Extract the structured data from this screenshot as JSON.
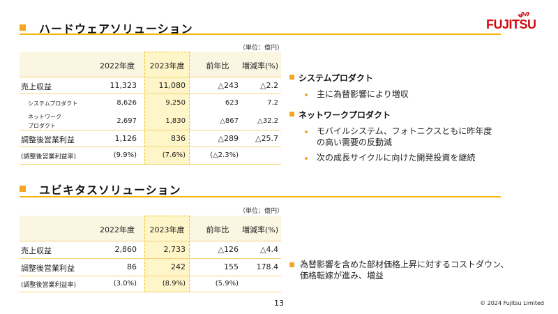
{
  "brand": {
    "logo_text": "FUJITSU",
    "logo_color": "#d20a11"
  },
  "accent_color": "#f5a623",
  "hardware": {
    "title": "ハードウェアソリューション",
    "unit": "（単位：億円）",
    "headers": [
      "2022年度",
      "2023年度",
      "前年比",
      "増減率(%)"
    ],
    "rows": [
      {
        "label": "売上収益",
        "values": [
          "11,323",
          "11,080",
          "△243",
          "△2.2"
        ]
      },
      {
        "label": "システムプロダクト",
        "values": [
          "8,626",
          "9,250",
          "623",
          "7.2"
        ]
      },
      {
        "label_lines": [
          "ネットワーク",
          "プロダクト"
        ],
        "values": [
          "2,697",
          "1,830",
          "△867",
          "△32.2"
        ]
      },
      {
        "label": "調整後営業利益",
        "values": [
          "1,126",
          "836",
          "△289",
          "△25.7"
        ]
      },
      {
        "label": "(調整後営業利益率)",
        "values": [
          "(9.9%)",
          "(7.6%)",
          "(△2.3%)",
          ""
        ]
      }
    ],
    "bullets": [
      {
        "heading": "システムプロダクト",
        "items": [
          [
            "主に為替影響により増収"
          ]
        ]
      },
      {
        "heading": "ネットワークプロダクト",
        "items": [
          [
            "モバイルシステム、フォトニクスともに昨年度",
            "の高い需要の反動減"
          ],
          [
            "次の成長サイクルに向けた開発投資を継続"
          ]
        ]
      }
    ]
  },
  "ubiquitous": {
    "title": "ユビキタスソリューション",
    "unit": "（単位：億円）",
    "headers": [
      "2022年度",
      "2023年度",
      "前年比",
      "増減率(%)"
    ],
    "rows": [
      {
        "label": "売上収益",
        "values": [
          "2,860",
          "2,733",
          "△126",
          "△4.4"
        ]
      },
      {
        "label": "調整後営業利益",
        "values": [
          "86",
          "242",
          "155",
          "178.4"
        ]
      },
      {
        "label": "(調整後営業利益率)",
        "values": [
          "(3.0%)",
          "(8.9%)",
          "(5.9%)",
          ""
        ]
      }
    ],
    "bullets": [
      {
        "items": [
          [
            "為替影響を含めた部材価格上昇に対するコストダウン、",
            "価格転嫁が進み、増益"
          ]
        ]
      }
    ]
  },
  "footer": {
    "page_number": "13",
    "copyright": "© 2024 Fujitsu Limited"
  }
}
